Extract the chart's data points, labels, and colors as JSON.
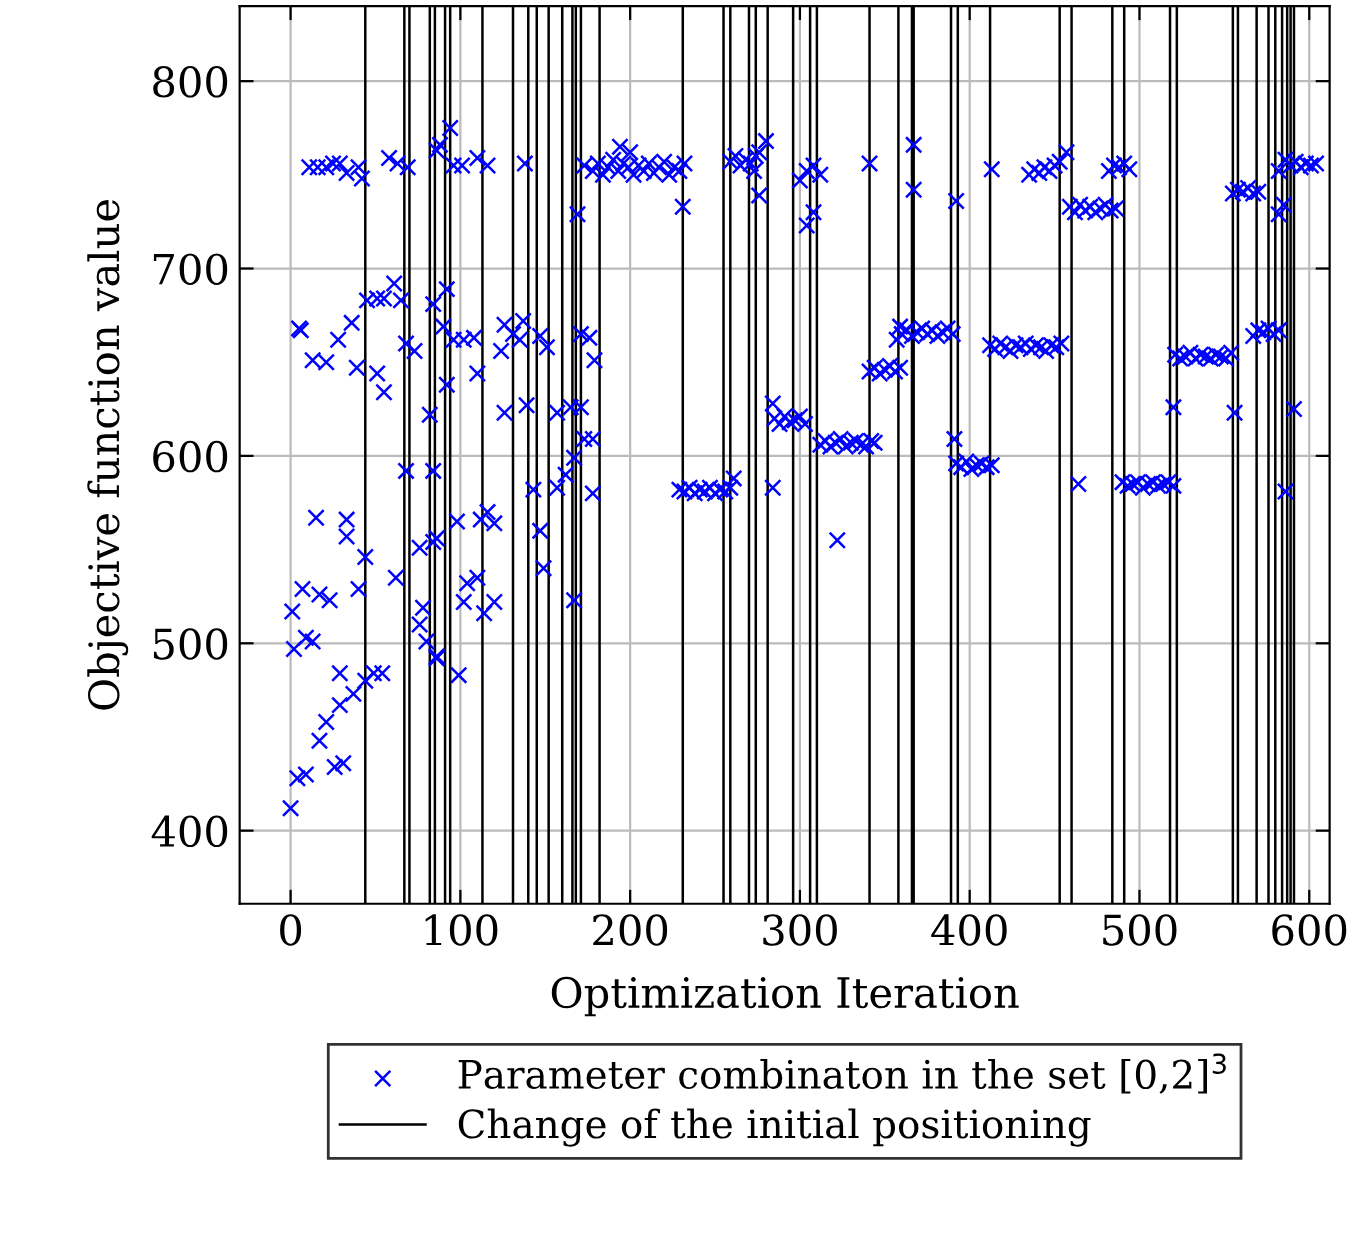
{
  "chart_data": {
    "type": "scatter",
    "xlabel": "Optimization Iteration",
    "ylabel": "Objective function value",
    "xlim": [
      -30,
      612
    ],
    "ylim": [
      361,
      840
    ],
    "xticks": [
      0,
      100,
      200,
      300,
      400,
      500,
      600
    ],
    "yticks": [
      400,
      500,
      600,
      700,
      800
    ],
    "grid": true,
    "legend": "bottom",
    "marker": "cross",
    "series": [
      {
        "name": "Parameter combinaton in the set [0,2]$^{3}$",
        "color": "#0000ff",
        "x": [
          11,
          16,
          21,
          25,
          29,
          33,
          40,
          42,
          58,
          63,
          69,
          86,
          5,
          6,
          13,
          21,
          28,
          36,
          39,
          45,
          51,
          55,
          61,
          65,
          51,
          55,
          68,
          73,
          84,
          82,
          68,
          84,
          15,
          33,
          33,
          44,
          7,
          17,
          23,
          40,
          62,
          1,
          2,
          9,
          13,
          78,
          76,
          80,
          29,
          21,
          29,
          37,
          44,
          49,
          54,
          17,
          4,
          9,
          26,
          31,
          0,
          86,
          84,
          76,
          94,
          88,
          96,
          101,
          110,
          116,
          138,
          173,
          169,
          92,
          90,
          96,
          102,
          108,
          110,
          92,
          126,
          131,
          135,
          124,
          137,
          147,
          151,
          171,
          176,
          179,
          126,
          139,
          157,
          165,
          171,
          173,
          178,
          167,
          162,
          157,
          143,
          178,
          116,
          112,
          120,
          98,
          147,
          149,
          86,
          110,
          104,
          102,
          120,
          114,
          167,
          86,
          99,
          231,
          284,
          284,
          308,
          304,
          322,
          341,
          367,
          367,
          359,
          392,
          391,
          413,
          464,
          520,
          556,
          582,
          585,
          582,
          586,
          591,
          178,
          181,
          184,
          187,
          190,
          193,
          196,
          199,
          202,
          205,
          208,
          211,
          214,
          217,
          220,
          223,
          226,
          229,
          232,
          194,
          200,
          229,
          232,
          235,
          238,
          241,
          244,
          247,
          250,
          253,
          256,
          259,
          261,
          259,
          262,
          265,
          268,
          271,
          274,
          276,
          280,
          276,
          273,
          285,
          288,
          291,
          294,
          297,
          300,
          303,
          300,
          304,
          308,
          312,
          312,
          315,
          318,
          321,
          324,
          327,
          330,
          333,
          336,
          339,
          342,
          344,
          341,
          344,
          347,
          350,
          353,
          356,
          359,
          357,
          360,
          363,
          366,
          369,
          372,
          375,
          378,
          381,
          384,
          387,
          390,
          392,
          395,
          398,
          401,
          404,
          407,
          410,
          413,
          412,
          415,
          418,
          421,
          424,
          427,
          430,
          433,
          436,
          439,
          442,
          445,
          448,
          451,
          454,
          435,
          438,
          441,
          444,
          447,
          450,
          453,
          457,
          459,
          462,
          465,
          468,
          471,
          474,
          477,
          480,
          483,
          486,
          482,
          485,
          488,
          491,
          494,
          490,
          493,
          496,
          499,
          502,
          505,
          508,
          511,
          514,
          517,
          520,
          521,
          524,
          527,
          530,
          533,
          536,
          539,
          542,
          545,
          548,
          551,
          554,
          555,
          558,
          561,
          564,
          567,
          570,
          567,
          570,
          573,
          576,
          579,
          582,
          586,
          589,
          592,
          595,
          598,
          601,
          604
        ],
        "values": [
          754,
          754,
          754,
          756,
          756,
          751,
          754,
          748,
          759,
          756,
          754,
          763,
          668,
          667,
          651,
          650,
          662,
          671,
          647,
          683,
          684,
          684,
          692,
          683,
          644,
          634,
          660,
          656,
          681,
          622,
          592,
          592,
          567,
          566,
          557,
          546,
          529,
          526,
          523,
          529,
          535,
          517,
          497,
          503,
          501,
          519,
          510,
          501,
          484,
          458,
          467,
          473,
          480,
          484,
          484,
          448,
          428,
          430,
          434,
          436,
          412,
          493,
          554,
          551,
          775,
          766,
          755,
          755,
          759,
          755,
          756,
          755,
          729,
          689,
          669,
          662,
          662,
          663,
          644,
          638,
          670,
          665,
          662,
          656,
          672,
          664,
          658,
          665,
          663,
          651,
          623,
          627,
          623,
          626,
          626,
          609,
          609,
          599,
          590,
          583,
          582,
          580,
          570,
          566,
          564,
          565,
          560,
          540,
          556,
          535,
          532,
          522,
          522,
          516,
          523,
          492,
          483,
          733,
          583,
          628,
          730,
          723,
          555,
          756,
          766,
          742,
          669,
          736,
          609,
          753,
          585,
          626,
          623,
          752,
          734,
          729,
          581,
          625,
          752,
          756,
          750,
          754,
          758,
          752,
          756,
          754,
          750,
          755,
          752,
          756,
          751,
          754,
          757,
          750,
          754,
          752,
          756,
          765,
          762,
          582,
          581,
          583,
          580,
          582,
          581,
          583,
          580,
          582,
          581,
          583,
          588,
          757,
          760,
          755,
          758,
          756,
          760,
          762,
          768,
          739,
          752,
          620,
          617,
          621,
          618,
          619,
          621,
          617,
          747,
          752,
          755,
          750,
          606,
          608,
          605,
          607,
          609,
          605,
          607,
          608,
          606,
          605,
          608,
          607,
          645,
          647,
          644,
          646,
          648,
          645,
          647,
          662,
          665,
          667,
          664,
          666,
          668,
          665,
          667,
          664,
          666,
          668,
          665,
          596,
          594,
          597,
          593,
          595,
          596,
          594,
          595,
          659,
          657,
          660,
          658,
          656,
          659,
          658,
          660,
          657,
          659,
          658,
          656,
          659,
          658,
          660,
          750,
          753,
          751,
          754,
          752,
          755,
          757,
          762,
          733,
          730,
          734,
          731,
          733,
          730,
          732,
          734,
          731,
          732,
          752,
          755,
          754,
          756,
          753,
          586,
          584,
          585,
          586,
          583,
          585,
          586,
          584,
          585,
          586,
          584,
          654,
          652,
          653,
          655,
          652,
          654,
          653,
          652,
          654,
          653,
          652,
          655,
          740,
          742,
          741,
          743,
          740,
          741,
          664,
          667,
          666,
          668,
          665,
          667,
          758,
          755,
          757,
          754,
          756,
          755,
          756
        ]
      }
    ],
    "ref_lines": [
      {
        "axis": "x",
        "value": 44,
        "label": "Change of the initial positioning",
        "color": "#000000"
      },
      {
        "axis": "x",
        "value": 67,
        "color": "#000000"
      },
      {
        "axis": "x",
        "value": 70,
        "color": "#000000"
      },
      {
        "axis": "x",
        "value": 82,
        "color": "#000000"
      },
      {
        "axis": "x",
        "value": 85,
        "color": "#000000"
      },
      {
        "axis": "x",
        "value": 91,
        "color": "#000000"
      },
      {
        "axis": "x",
        "value": 94,
        "color": "#000000"
      },
      {
        "axis": "x",
        "value": 113,
        "color": "#000000"
      },
      {
        "axis": "x",
        "value": 131,
        "color": "#000000"
      },
      {
        "axis": "x",
        "value": 140,
        "color": "#000000"
      },
      {
        "axis": "x",
        "value": 145,
        "color": "#000000"
      },
      {
        "axis": "x",
        "value": 152,
        "color": "#000000"
      },
      {
        "axis": "x",
        "value": 160,
        "color": "#000000"
      },
      {
        "axis": "x",
        "value": 166,
        "color": "#000000"
      },
      {
        "axis": "x",
        "value": 168,
        "color": "#000000"
      },
      {
        "axis": "x",
        "value": 171,
        "color": "#000000"
      },
      {
        "axis": "x",
        "value": 182,
        "color": "#000000"
      },
      {
        "axis": "x",
        "value": 231,
        "color": "#000000"
      },
      {
        "axis": "x",
        "value": 255,
        "color": "#000000"
      },
      {
        "axis": "x",
        "value": 259,
        "color": "#000000"
      },
      {
        "axis": "x",
        "value": 270,
        "color": "#000000"
      },
      {
        "axis": "x",
        "value": 274,
        "color": "#000000"
      },
      {
        "axis": "x",
        "value": 281,
        "color": "#000000"
      },
      {
        "axis": "x",
        "value": 296,
        "color": "#000000"
      },
      {
        "axis": "x",
        "value": 306,
        "color": "#000000"
      },
      {
        "axis": "x",
        "value": 310,
        "color": "#000000"
      },
      {
        "axis": "x",
        "value": 341,
        "color": "#000000"
      },
      {
        "axis": "x",
        "value": 358,
        "color": "#000000"
      },
      {
        "axis": "x",
        "value": 366,
        "color": "#000000"
      },
      {
        "axis": "x",
        "value": 367,
        "color": "#000000"
      },
      {
        "axis": "x",
        "value": 389,
        "color": "#000000"
      },
      {
        "axis": "x",
        "value": 393,
        "color": "#000000"
      },
      {
        "axis": "x",
        "value": 412,
        "color": "#000000"
      },
      {
        "axis": "x",
        "value": 453,
        "color": "#000000"
      },
      {
        "axis": "x",
        "value": 460,
        "color": "#000000"
      },
      {
        "axis": "x",
        "value": 484,
        "color": "#000000"
      },
      {
        "axis": "x",
        "value": 491,
        "color": "#000000"
      },
      {
        "axis": "x",
        "value": 518,
        "color": "#000000"
      },
      {
        "axis": "x",
        "value": 522,
        "color": "#000000"
      },
      {
        "axis": "x",
        "value": 555,
        "color": "#000000"
      },
      {
        "axis": "x",
        "value": 558,
        "color": "#000000"
      },
      {
        "axis": "x",
        "value": 569,
        "color": "#000000"
      },
      {
        "axis": "x",
        "value": 576,
        "color": "#000000"
      },
      {
        "axis": "x",
        "value": 580,
        "color": "#000000"
      },
      {
        "axis": "x",
        "value": 584,
        "color": "#000000"
      },
      {
        "axis": "x",
        "value": 587,
        "color": "#000000"
      },
      {
        "axis": "x",
        "value": 589,
        "color": "#000000"
      },
      {
        "axis": "x",
        "value": 591,
        "color": "#000000"
      }
    ]
  }
}
